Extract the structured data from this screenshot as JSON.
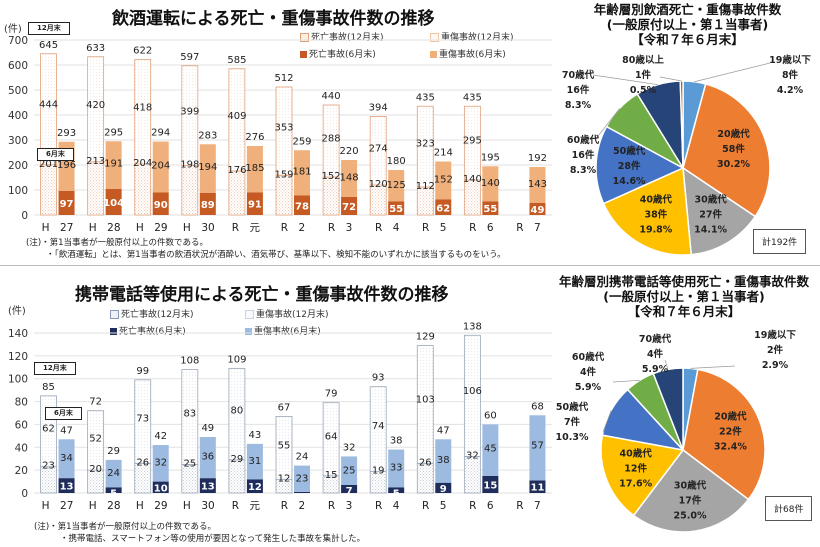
{
  "chart_data": [
    {
      "id": "drunk",
      "type": "bar",
      "title": "飲酒運転による死亡・重傷事故件数の推移",
      "ylabel": "(件)",
      "ylim": [
        0,
        700
      ],
      "yticks": [
        0,
        100,
        200,
        300,
        400,
        500,
        600,
        700
      ],
      "grid": true,
      "stacked": true,
      "categories": [
        "H　27",
        "H　28",
        "H　29",
        "H　30",
        "R　元",
        "R　2",
        "R　3",
        "R　4",
        "R　5",
        "R　6",
        "R　7"
      ],
      "tags": {
        "dec": "12月末",
        "jun": "6月末"
      },
      "legend": [
        {
          "label": "死亡事故(12月末)",
          "color": "#d9a27a",
          "style": "hatch-outline"
        },
        {
          "label": "重傷事故(12月末)",
          "color": "#f2c6a3",
          "style": "hatch-light"
        },
        {
          "label": "死亡事故(6月末)",
          "color": "#c55a23",
          "style": "solid"
        },
        {
          "label": "重傷事故(6月末)",
          "color": "#f0b07c",
          "style": "solid"
        }
      ],
      "series": [
        {
          "name": "死亡事故(12月末)",
          "group": "dec",
          "values": [
            201,
            213,
            204,
            198,
            176,
            159,
            152,
            120,
            112,
            140,
            null
          ]
        },
        {
          "name": "重傷事故(12月末)",
          "group": "dec",
          "values": [
            444,
            420,
            418,
            399,
            409,
            353,
            288,
            274,
            323,
            295,
            null
          ]
        },
        {
          "name": "死亡事故(6月末)",
          "group": "jun",
          "values": [
            97,
            104,
            90,
            89,
            91,
            78,
            72,
            55,
            62,
            55,
            49
          ]
        },
        {
          "name": "重傷事故(6月末)",
          "group": "jun",
          "values": [
            196,
            191,
            204,
            194,
            185,
            181,
            148,
            125,
            152,
            140,
            143
          ]
        }
      ],
      "totals": {
        "dec": [
          645,
          633,
          622,
          597,
          585,
          512,
          440,
          394,
          435,
          435,
          null
        ],
        "jun": [
          293,
          295,
          294,
          283,
          276,
          259,
          220,
          180,
          214,
          195,
          192
        ]
      },
      "colors": {
        "dec_fatal": "#f7e6d6",
        "dec_serious": "#fdf4ec",
        "dec_border": "#e0a07a",
        "jun_fatal": "#c55a23",
        "jun_serious": "#f0b07c",
        "fatal_label": "#ffffff"
      },
      "notes": [
        "(注)・第1当事者が一般原付以上の件数である。",
        "・「飲酒運転」とは、第1当事者の飲酒状況が酒酔い、酒気帯び、基準以下、検知不能のいずれかに該当するものをいう。"
      ]
    },
    {
      "id": "phone",
      "type": "bar",
      "title": "携帯電話等使用による死亡・重傷事故件数の推移",
      "ylabel": "(件)",
      "ylim": [
        0,
        140
      ],
      "yticks": [
        0,
        20,
        40,
        60,
        80,
        100,
        120,
        140
      ],
      "grid": true,
      "stacked": true,
      "categories": [
        "H　27",
        "H　28",
        "H　29",
        "H　30",
        "R　元",
        "R　2",
        "R　3",
        "R　4",
        "R　5",
        "R　6",
        "R　7"
      ],
      "tags": {
        "dec": "12月末",
        "jun": "6月末"
      },
      "legend": [
        {
          "label": "死亡事故(12月末)",
          "color": "#8a9bb8",
          "style": "hatch-outline"
        },
        {
          "label": "重傷事故(12月末)",
          "color": "#c8d4e6",
          "style": "hatch-light"
        },
        {
          "label": "死亡事故(6月末)",
          "color": "#1f2d5c",
          "style": "solid"
        },
        {
          "label": "重傷事故(6月末)",
          "color": "#9dbbe0",
          "style": "solid"
        }
      ],
      "series": [
        {
          "name": "死亡事故(12月末)",
          "group": "dec",
          "values": [
            23,
            20,
            26,
            25,
            29,
            12,
            15,
            19,
            26,
            32,
            null
          ]
        },
        {
          "name": "重傷事故(12月末)",
          "group": "dec",
          "values": [
            62,
            52,
            73,
            83,
            80,
            55,
            64,
            74,
            103,
            106,
            null
          ]
        },
        {
          "name": "死亡事故(6月末)",
          "group": "jun",
          "values": [
            13,
            5,
            10,
            13,
            12,
            1,
            7,
            5,
            9,
            15,
            11
          ]
        },
        {
          "name": "重傷事故(6月末)",
          "group": "jun",
          "values": [
            34,
            24,
            32,
            36,
            31,
            23,
            25,
            33,
            38,
            45,
            57
          ]
        }
      ],
      "totals": {
        "dec": [
          85,
          72,
          99,
          108,
          109,
          67,
          79,
          93,
          129,
          138,
          null
        ],
        "jun": [
          47,
          29,
          42,
          49,
          43,
          24,
          32,
          38,
          47,
          60,
          68
        ]
      },
      "colors": {
        "dec_fatal": "#e4e8ef",
        "dec_serious": "#f5f7fb",
        "dec_border": "#9aa6b8",
        "jun_fatal": "#1f2d5c",
        "jun_serious": "#9dbbe0",
        "fatal_label": "#ffffff"
      },
      "notes": [
        "(注)・第1当事者が一般原付以上の件数である。",
        "・携帯電話、スマートフォン等の使用が要因となって発生した事故を集計した。"
      ]
    },
    {
      "id": "drunk-pie",
      "type": "pie",
      "title": [
        "年齢層別飲酒死亡・重傷事故件数",
        "(一般原付以上・第１当事者)",
        "【令和７年６月末】"
      ],
      "total_label": "計192件",
      "slices": [
        {
          "label": "19歳以下",
          "count": "8件",
          "value": 4.2,
          "pct": "4.2%",
          "color": "#5b9bd5"
        },
        {
          "label": "20歳代",
          "count": "58件",
          "value": 30.2,
          "pct": "30.2%",
          "color": "#ed7d31"
        },
        {
          "label": "30歳代",
          "count": "27件",
          "value": 14.1,
          "pct": "14.1%",
          "color": "#a5a5a5"
        },
        {
          "label": "40歳代",
          "count": "38件",
          "value": 19.8,
          "pct": "19.8%",
          "color": "#ffc000"
        },
        {
          "label": "50歳代",
          "count": "28件",
          "value": 14.6,
          "pct": "14.6%",
          "color": "#4472c4"
        },
        {
          "label": "60歳代",
          "count": "16件",
          "value": 8.3,
          "pct": "8.3%",
          "color": "#70ad47"
        },
        {
          "label": "70歳代",
          "count": "16件",
          "value": 8.3,
          "pct": "8.3%",
          "color": "#264478"
        },
        {
          "label": "80歳以上",
          "count": "1件",
          "value": 0.5,
          "pct": "0.5%",
          "color": "#9e480e"
        }
      ]
    },
    {
      "id": "phone-pie",
      "type": "pie",
      "title": [
        "年齢層別携帯電話等使用死亡・重傷事故件数",
        "(一般原付以上・第１当事者)",
        "【令和７年６月末】"
      ],
      "total_label": "計68件",
      "slices": [
        {
          "label": "19歳以下",
          "count": "2件",
          "value": 2.9,
          "pct": "2.9%",
          "color": "#5b9bd5"
        },
        {
          "label": "20歳代",
          "count": "22件",
          "value": 32.4,
          "pct": "32.4%",
          "color": "#ed7d31"
        },
        {
          "label": "30歳代",
          "count": "17件",
          "value": 25.0,
          "pct": "25.0%",
          "color": "#a5a5a5"
        },
        {
          "label": "40歳代",
          "count": "12件",
          "value": 17.6,
          "pct": "17.6%",
          "color": "#ffc000"
        },
        {
          "label": "50歳代",
          "count": "7件",
          "value": 10.3,
          "pct": "10.3%",
          "color": "#4472c4"
        },
        {
          "label": "60歳代",
          "count": "4件",
          "value": 5.9,
          "pct": "5.9%",
          "color": "#70ad47"
        },
        {
          "label": "70歳代",
          "count": "4件",
          "value": 5.9,
          "pct": "5.9%",
          "color": "#264478"
        }
      ]
    }
  ]
}
